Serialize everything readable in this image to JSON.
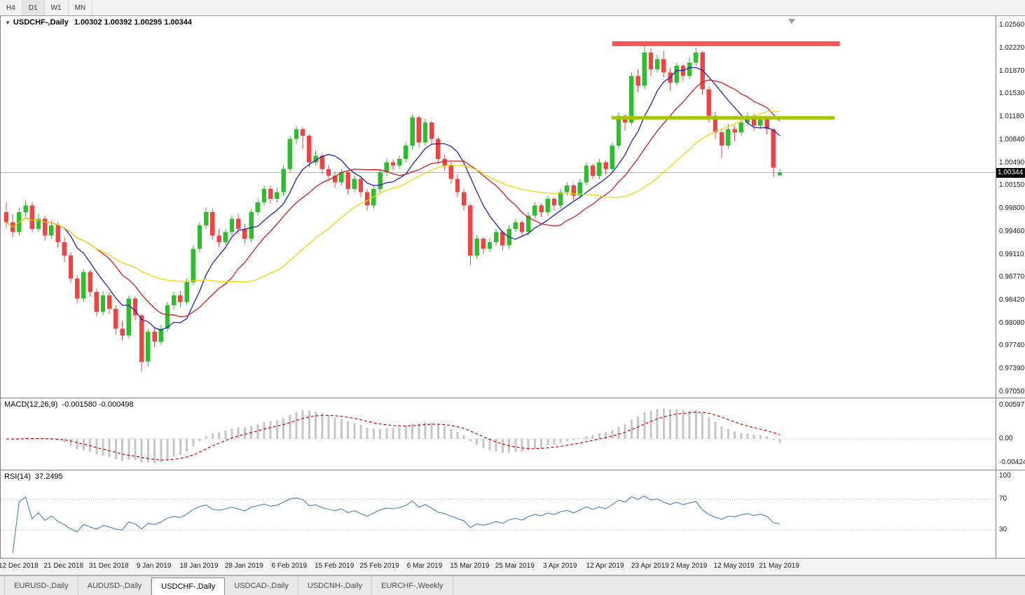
{
  "toolbar": {
    "timeframes": [
      "H4",
      "D1",
      "W1",
      "MN"
    ],
    "active": "D1"
  },
  "chart": {
    "title": {
      "symbol": "USDCHF-,Daily",
      "ohlc": "1.00302 1.00392 1.00295 1.00344"
    },
    "price_axis": {
      "labels": [
        "1.02560",
        "1.02220",
        "1.01870",
        "1.01530",
        "1.01180",
        "1.00840",
        "1.00490",
        "1.00150",
        "0.99800",
        "0.99460",
        "0.99110",
        "0.98770",
        "0.98420",
        "0.98080",
        "0.97740",
        "0.97390",
        "0.97050"
      ],
      "current_price": "1.00344"
    },
    "colors": {
      "up": "#2bbf2b",
      "down": "#f44242",
      "ma_fast": "#2020b4",
      "ma_mid": "#d01c1c",
      "ma_slow": "#f0d800",
      "macd_hist": "#c6c6c6",
      "macd_signal": "#cc0000",
      "rsi_line": "#4a7fb5",
      "resistance": "#fa5555",
      "support": "#a6c40a",
      "price_line": "#b4b4b4",
      "grid": "#bdbdbd",
      "tag_bg": "#000000",
      "tag_text": "#ffffff"
    },
    "annotations": {
      "resistance": {
        "price": 1.02285,
        "from_bar": 94,
        "to_bar": 129.3,
        "thickness": 7
      },
      "support": {
        "price": 1.0117,
        "from_bar": 93.9,
        "to_bar": 128.5,
        "thickness": 5
      }
    }
  },
  "macd": {
    "label": "MACD(12,26,9)",
    "values": "-0.001580 -0.000498",
    "axis_labels": [
      "0.00597",
      "0.00",
      "-0.004243"
    ]
  },
  "rsi": {
    "label": "RSI(14)",
    "value": "37.2495",
    "axis_labels": [
      "100",
      "70",
      "30"
    ]
  },
  "dates": [
    {
      "i": 2,
      "label": "12 Dec 2018"
    },
    {
      "i": 9,
      "label": "21 Dec 2018"
    },
    {
      "i": 16,
      "label": "31 Dec 2018"
    },
    {
      "i": 23,
      "label": "9 Jan 2019"
    },
    {
      "i": 30,
      "label": "18 Jan 2019"
    },
    {
      "i": 37,
      "label": "28 Jan 2019"
    },
    {
      "i": 44,
      "label": "6 Feb 2019"
    },
    {
      "i": 51,
      "label": "15 Feb 2019"
    },
    {
      "i": 58,
      "label": "25 Feb 2019"
    },
    {
      "i": 65,
      "label": "6 Mar 2019"
    },
    {
      "i": 72,
      "label": "15 Mar 2019"
    },
    {
      "i": 79,
      "label": "25 Mar 2019"
    },
    {
      "i": 86,
      "label": "3 Apr 2019"
    },
    {
      "i": 93,
      "label": "12 Apr 2019"
    },
    {
      "i": 100,
      "label": "23 Apr 2019"
    },
    {
      "i": 106,
      "label": "2 May 2019"
    },
    {
      "i": 113,
      "label": "12 May 2019"
    },
    {
      "i": 120,
      "label": "21 May 2019"
    }
  ],
  "tabs": {
    "items": [
      "EURUSD-,Daily",
      "AUDUSD-,Daily",
      "USDCHF-,Daily",
      "USDCAD-,Daily",
      "USDCNH-,Daily",
      "EURCHF-,Weekly"
    ],
    "active_index": 2
  },
  "chart_data": {
    "type": "candlestick",
    "symbol": "USDCHF",
    "timeframe": "Daily",
    "price_range": {
      "top": 1.027,
      "bottom": 0.9695
    },
    "ma": [
      {
        "period": 8,
        "color_key": "ma_fast"
      },
      {
        "period": 15,
        "color_key": "ma_mid"
      },
      {
        "period": 30,
        "color_key": "ma_slow"
      }
    ],
    "macd_params": [
      12,
      26,
      9
    ],
    "rsi_period": 14,
    "candles": [
      [
        0.9975,
        0.999,
        0.9952,
        0.996
      ],
      [
        0.996,
        0.9972,
        0.9938,
        0.9945
      ],
      [
        0.9945,
        0.9982,
        0.994,
        0.9975
      ],
      [
        0.9975,
        0.9992,
        0.9968,
        0.9985
      ],
      [
        0.9985,
        0.999,
        0.9944,
        0.995
      ],
      [
        0.995,
        0.9972,
        0.9945,
        0.9965
      ],
      [
        0.9965,
        0.997,
        0.9932,
        0.994
      ],
      [
        0.994,
        0.9962,
        0.9935,
        0.9955
      ],
      [
        0.9955,
        0.996,
        0.9922,
        0.993
      ],
      [
        0.993,
        0.9938,
        0.99,
        0.991
      ],
      [
        0.991,
        0.9915,
        0.9868,
        0.9875
      ],
      [
        0.9875,
        0.988,
        0.9838,
        0.9845
      ],
      [
        0.9845,
        0.989,
        0.984,
        0.9885
      ],
      [
        0.9885,
        0.9888,
        0.9848,
        0.9855
      ],
      [
        0.9855,
        0.986,
        0.9818,
        0.9825
      ],
      [
        0.9825,
        0.9856,
        0.982,
        0.985
      ],
      [
        0.985,
        0.9854,
        0.9822,
        0.983
      ],
      [
        0.983,
        0.9835,
        0.9792,
        0.98
      ],
      [
        0.98,
        0.9812,
        0.9782,
        0.979
      ],
      [
        0.979,
        0.985,
        0.9785,
        0.9845
      ],
      [
        0.9845,
        0.9848,
        0.9812,
        0.982
      ],
      [
        0.982,
        0.9822,
        0.9735,
        0.975
      ],
      [
        0.975,
        0.98,
        0.9742,
        0.9795
      ],
      [
        0.9795,
        0.9802,
        0.9772,
        0.978
      ],
      [
        0.978,
        0.9806,
        0.9775,
        0.98
      ],
      [
        0.98,
        0.984,
        0.9795,
        0.9835
      ],
      [
        0.9835,
        0.9855,
        0.9828,
        0.985
      ],
      [
        0.985,
        0.9856,
        0.9832,
        0.984
      ],
      [
        0.984,
        0.9875,
        0.9836,
        0.987
      ],
      [
        0.987,
        0.9925,
        0.9865,
        0.992
      ],
      [
        0.992,
        0.996,
        0.9915,
        0.9955
      ],
      [
        0.9955,
        0.9982,
        0.995,
        0.9975
      ],
      [
        0.9975,
        0.998,
        0.9934,
        0.994
      ],
      [
        0.994,
        0.995,
        0.9922,
        0.993
      ],
      [
        0.993,
        0.995,
        0.9925,
        0.9945
      ],
      [
        0.9945,
        0.997,
        0.994,
        0.9965
      ],
      [
        0.9965,
        0.9972,
        0.9942,
        0.995
      ],
      [
        0.995,
        0.9958,
        0.9928,
        0.9935
      ],
      [
        0.9935,
        0.998,
        0.993,
        0.9975
      ],
      [
        0.9975,
        0.9995,
        0.997,
        0.999
      ],
      [
        0.999,
        1.0015,
        0.9985,
        1.001
      ],
      [
        1.001,
        1.0015,
        0.9988,
        0.9995
      ],
      [
        0.9995,
        1.0012,
        0.999,
        1.0005
      ],
      [
        1.0005,
        1.0045,
        1.0,
        1.004
      ],
      [
        1.004,
        1.009,
        1.0035,
        1.0085
      ],
      [
        1.0085,
        1.0105,
        1.0078,
        1.01
      ],
      [
        1.01,
        1.0103,
        1.007,
        1.009
      ],
      [
        1.009,
        1.0092,
        1.0042,
        1.005
      ],
      [
        1.005,
        1.0068,
        1.0045,
        1.006
      ],
      [
        1.006,
        1.0063,
        1.0032,
        1.004
      ],
      [
        1.004,
        1.0046,
        1.0022,
        1.003
      ],
      [
        1.003,
        1.0036,
        1.0012,
        1.002
      ],
      [
        1.002,
        1.004,
        1.0015,
        1.0035
      ],
      [
        1.0035,
        1.0038,
        1.0002,
        1.001
      ],
      [
        1.001,
        1.003,
        1.0005,
        1.0025
      ],
      [
        1.0025,
        1.0028,
        0.9998,
        1.0005
      ],
      [
        1.0005,
        1.001,
        0.9978,
        0.9985
      ],
      [
        0.9985,
        1.0015,
        0.998,
        1.001
      ],
      [
        1.001,
        1.004,
        1.0005,
        1.0035
      ],
      [
        1.0035,
        1.0055,
        1.003,
        1.005
      ],
      [
        1.005,
        1.0054,
        1.0038,
        1.0045
      ],
      [
        1.0045,
        1.006,
        1.004,
        1.0055
      ],
      [
        1.0055,
        1.008,
        1.005,
        1.0075
      ],
      [
        1.0075,
        1.0122,
        1.007,
        1.0118
      ],
      [
        1.0118,
        1.012,
        1.0072,
        1.008
      ],
      [
        1.008,
        1.0115,
        1.0075,
        1.011
      ],
      [
        1.011,
        1.0112,
        1.0078,
        1.0085
      ],
      [
        1.0085,
        1.0088,
        1.0048,
        1.0055
      ],
      [
        1.0055,
        1.0062,
        1.0038,
        1.0045
      ],
      [
        1.0045,
        1.005,
        1.0018,
        1.0025
      ],
      [
        1.0025,
        1.0032,
        0.9998,
        1.0005
      ],
      [
        1.0005,
        1.001,
        0.9978,
        0.9985
      ],
      [
        0.9985,
        0.9988,
        0.9895,
        0.991
      ],
      [
        0.991,
        0.994,
        0.9905,
        0.9935
      ],
      [
        0.9935,
        0.9938,
        0.9912,
        0.992
      ],
      [
        0.992,
        0.9936,
        0.9915,
        0.993
      ],
      [
        0.993,
        0.995,
        0.9925,
        0.9945
      ],
      [
        0.9945,
        0.9948,
        0.9918,
        0.9925
      ],
      [
        0.9925,
        0.9955,
        0.992,
        0.995
      ],
      [
        0.995,
        0.9965,
        0.9945,
        0.996
      ],
      [
        0.996,
        0.9963,
        0.9938,
        0.9945
      ],
      [
        0.9945,
        0.9975,
        0.994,
        0.997
      ],
      [
        0.997,
        0.999,
        0.9965,
        0.9985
      ],
      [
        0.9985,
        0.9988,
        0.9968,
        0.9975
      ],
      [
        0.9975,
        1.0,
        0.997,
        0.9995
      ],
      [
        0.9995,
        0.9998,
        0.9978,
        0.9985
      ],
      [
        0.9985,
        1.001,
        0.998,
        1.0005
      ],
      [
        1.0005,
        1.002,
        1.0,
        1.0015
      ],
      [
        1.0015,
        1.0018,
        0.9994,
        1.0
      ],
      [
        1.0,
        1.0025,
        0.9995,
        1.002
      ],
      [
        1.002,
        1.005,
        1.0015,
        1.0045
      ],
      [
        1.0045,
        1.0048,
        1.0024,
        1.003
      ],
      [
        1.003,
        1.0055,
        1.0025,
        1.005
      ],
      [
        1.005,
        1.0053,
        1.0032,
        1.004
      ],
      [
        1.004,
        1.008,
        1.0035,
        1.0075
      ],
      [
        1.0075,
        1.0125,
        1.007,
        1.012
      ],
      [
        1.012,
        1.0122,
        1.0098,
        1.011
      ],
      [
        1.011,
        1.0185,
        1.0105,
        1.018
      ],
      [
        1.018,
        1.019,
        1.0155,
        1.0165
      ],
      [
        1.0165,
        1.0226,
        1.016,
        1.0215
      ],
      [
        1.0215,
        1.0222,
        1.018,
        1.019
      ],
      [
        1.019,
        1.0212,
        1.0185,
        1.0205
      ],
      [
        1.0205,
        1.0218,
        1.0178,
        1.0185
      ],
      [
        1.0185,
        1.0192,
        1.0158,
        1.017
      ],
      [
        1.017,
        1.02,
        1.0165,
        1.0195
      ],
      [
        1.0195,
        1.0198,
        1.0172,
        1.018
      ],
      [
        1.018,
        1.0208,
        1.0175,
        1.02
      ],
      [
        1.02,
        1.0222,
        1.0195,
        1.0215
      ],
      [
        1.0215,
        1.0218,
        1.0152,
        1.016
      ],
      [
        1.016,
        1.0165,
        1.011,
        1.012
      ],
      [
        1.012,
        1.0126,
        1.0085,
        1.0095
      ],
      [
        1.0095,
        1.01,
        1.0056,
        1.0075
      ],
      [
        1.0075,
        1.0108,
        1.007,
        1.01
      ],
      [
        1.01,
        1.0105,
        1.0082,
        1.0095
      ],
      [
        1.0095,
        1.0115,
        1.009,
        1.011
      ],
      [
        1.011,
        1.0125,
        1.0105,
        1.012
      ],
      [
        1.012,
        1.0123,
        1.0098,
        1.0105
      ],
      [
        1.0105,
        1.012,
        1.01,
        1.0115
      ],
      [
        1.0115,
        1.0118,
        1.0092,
        1.01
      ],
      [
        1.01,
        1.0102,
        1.0028,
        1.0042
      ],
      [
        1.00302,
        1.00392,
        1.00295,
        1.00344
      ]
    ]
  }
}
